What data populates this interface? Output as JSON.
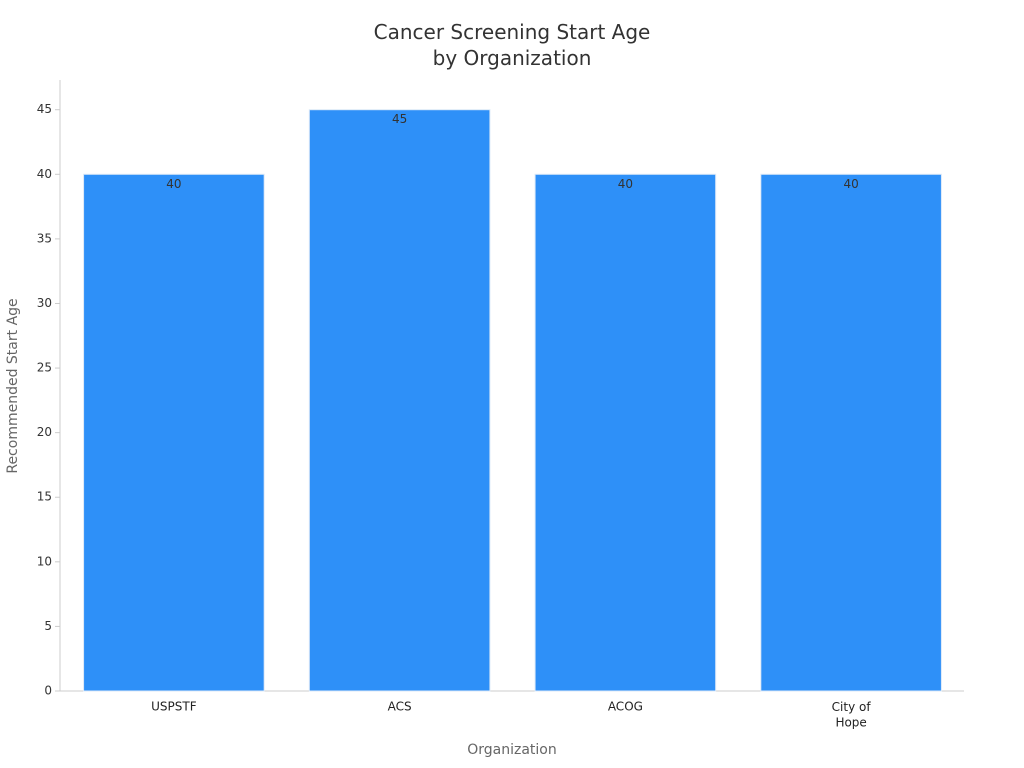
{
  "chart_data": {
    "type": "bar",
    "title": "Cancer Screening Start Age\nby Organization",
    "x_label": "Organization",
    "y_label": "Recommended Start Age",
    "categories": [
      "USPSTF",
      "ACS",
      "ACOG",
      "City of\nHope"
    ],
    "values": [
      40,
      45,
      40,
      40
    ],
    "color": "#2e90f8",
    "ylim": [
      0,
      47.3
    ],
    "yticks": [
      0,
      5,
      10,
      15,
      20,
      25,
      30,
      35,
      40,
      45
    ],
    "grid": false
  }
}
